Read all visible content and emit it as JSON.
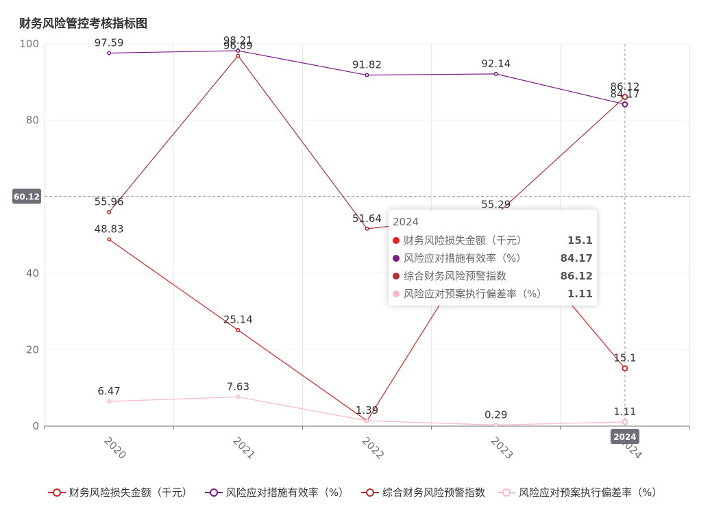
{
  "chart_data": {
    "type": "line",
    "title": "财务风险管控考核指标图",
    "categories": [
      "2020",
      "2021",
      "2022",
      "2023",
      "2024"
    ],
    "ylim": [
      0,
      100
    ],
    "yticks": [
      "0",
      "20",
      "40",
      "60",
      "80",
      "100"
    ],
    "grid": true,
    "legend_position": "bottom",
    "series": [
      {
        "name": "财务风险损失金额（千元）",
        "color": "#e01f1f",
        "values": [
          48.83,
          25.14,
          1.39,
          55.29,
          15.1
        ],
        "labels": [
          "48.83",
          "25.14",
          "1.39",
          "",
          "15.1"
        ]
      },
      {
        "name": "风险应对措施有效率（%）",
        "color": "#7b1a86",
        "values": [
          97.59,
          98.21,
          91.82,
          92.14,
          84.17
        ],
        "labels": [
          "97.59",
          "98.21",
          "91.82",
          "92.14",
          "84.17"
        ]
      },
      {
        "name": "综合财务风险预警指数",
        "color": "#b22f2f",
        "values": [
          55.96,
          96.89,
          51.64,
          55.29,
          86.12
        ],
        "labels": [
          "55.96",
          "96.89",
          "51.64",
          "55.29",
          "86.12"
        ]
      },
      {
        "name": "风险应对预案执行偏差率（%）",
        "color": "#f9b8c4",
        "values": [
          6.47,
          7.63,
          1.39,
          0.29,
          1.11
        ],
        "labels": [
          "6.47",
          "7.63",
          "",
          "0.29",
          "1.11"
        ]
      }
    ],
    "crosshair": {
      "y_value": 60.12,
      "y_label": "60.12",
      "x_label": "2024"
    },
    "tooltip": {
      "title": "2024",
      "rows": [
        {
          "name": "财务风险损失金额（千元）",
          "value": "15.1",
          "color": "#e01f1f"
        },
        {
          "name": "风险应对措施有效率（%）",
          "value": "84.17",
          "color": "#7b1a86"
        },
        {
          "name": "综合财务风险预警指数",
          "value": "86.12",
          "color": "#b22f2f"
        },
        {
          "name": "风险应对预案执行偏差率（%）",
          "value": "1.11",
          "color": "#f9b8c4"
        }
      ]
    }
  }
}
